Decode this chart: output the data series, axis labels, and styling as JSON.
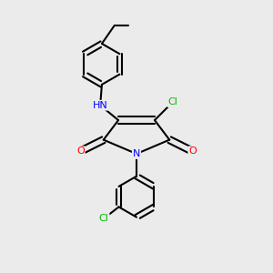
{
  "background_color": "#ebebeb",
  "bond_width": 1.5,
  "atom_colors": {
    "N": "#0000ff",
    "O": "#ff0000",
    "Cl": "#00bb00",
    "C": "#000000"
  },
  "figsize": [
    3.0,
    3.0
  ],
  "dpi": 100
}
